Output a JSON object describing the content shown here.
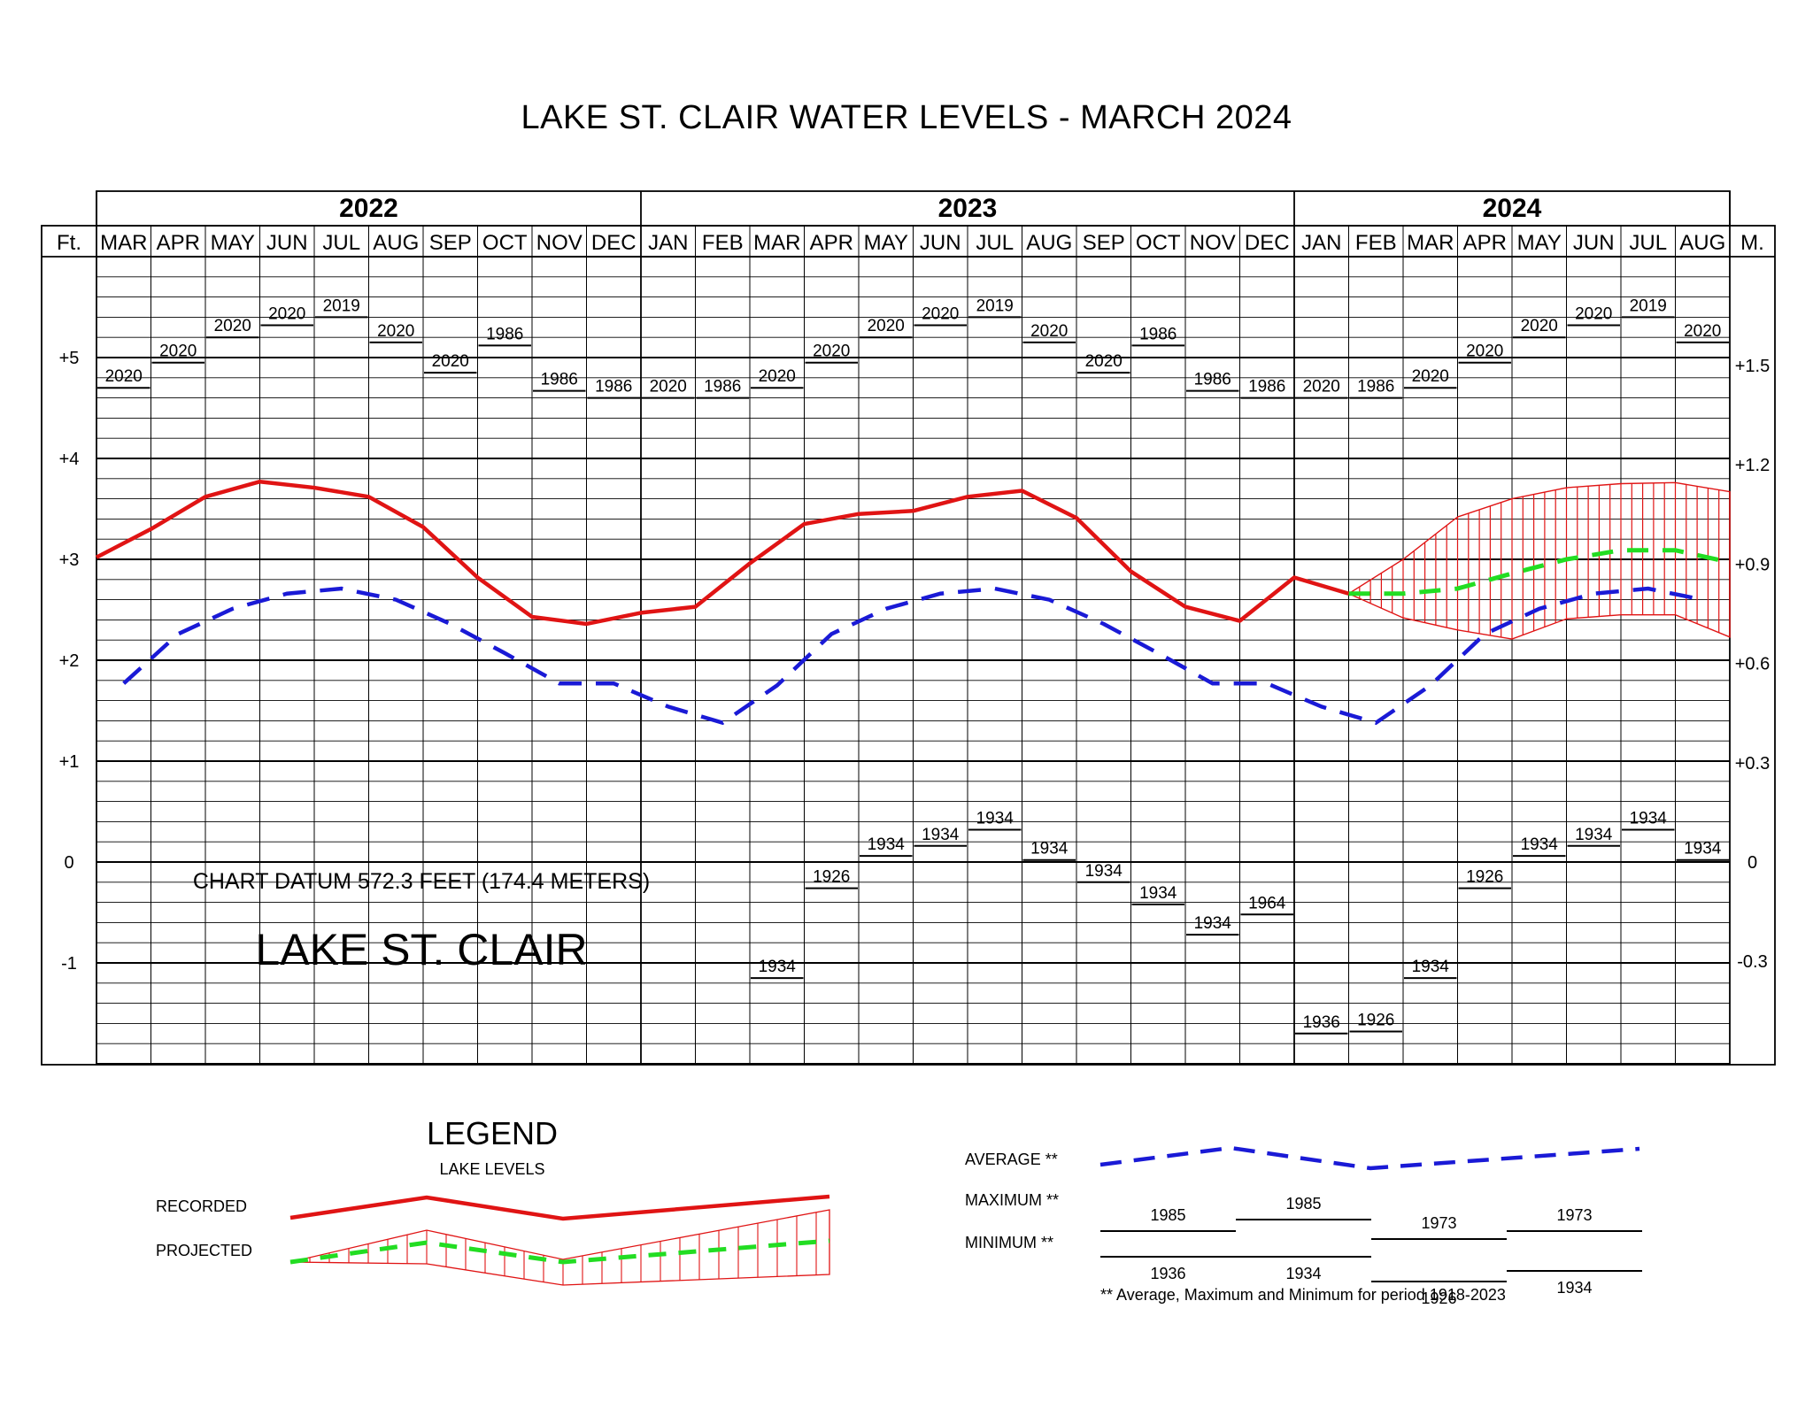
{
  "title": "LAKE ST. CLAIR WATER LEVELS - MARCH 2024",
  "chart_data": {
    "type": "line",
    "years": [
      {
        "label": "2022",
        "months": [
          "MAR",
          "APR",
          "MAY",
          "JUN",
          "JUL",
          "AUG",
          "SEP",
          "OCT",
          "NOV",
          "DEC"
        ]
      },
      {
        "label": "2023",
        "months": [
          "JAN",
          "FEB",
          "MAR",
          "APR",
          "MAY",
          "JUN",
          "JUL",
          "AUG",
          "SEP",
          "OCT",
          "NOV",
          "DEC"
        ]
      },
      {
        "label": "2024",
        "months": [
          "JAN",
          "FEB",
          "MAR",
          "APR",
          "MAY",
          "JUN",
          "JUL",
          "AUG"
        ]
      }
    ],
    "left_unit": "Ft.",
    "right_unit": "M.",
    "left_ticks": [
      {
        "v": 5,
        "label": "+5"
      },
      {
        "v": 4,
        "label": "+4"
      },
      {
        "v": 3,
        "label": "+3"
      },
      {
        "v": 2,
        "label": "+2"
      },
      {
        "v": 1,
        "label": "+1"
      },
      {
        "v": 0,
        "label": "0"
      },
      {
        "v": -1,
        "label": "-1"
      }
    ],
    "right_ticks": [
      {
        "v": 1.5,
        "label": "+1.5"
      },
      {
        "v": 1.2,
        "label": "+1.2"
      },
      {
        "v": 0.9,
        "label": "+0.9"
      },
      {
        "v": 0.6,
        "label": "+0.6"
      },
      {
        "v": 0.3,
        "label": "+0.3"
      },
      {
        "v": 0,
        "label": "0"
      },
      {
        "v": -0.3,
        "label": "-0.3"
      }
    ],
    "ylim_ft": [
      -2,
      6
    ],
    "grid": true,
    "recorded": [
      3.02,
      3.3,
      3.62,
      3.77,
      3.71,
      3.62,
      3.32,
      2.82,
      2.43,
      2.36,
      2.47,
      2.53,
      2.96,
      3.35,
      3.45,
      3.48,
      3.62,
      3.68,
      3.41,
      2.88,
      2.53,
      2.39,
      2.82,
      2.66
    ],
    "average": [
      1.77,
      2.26,
      2.51,
      2.66,
      2.71,
      2.6,
      2.36,
      2.07,
      1.77,
      1.77,
      1.54,
      1.38,
      1.75,
      2.26,
      2.51,
      2.66,
      2.71,
      2.6,
      2.36,
      2.07,
      1.77,
      1.77,
      1.54,
      1.38,
      1.75,
      2.26,
      2.51,
      2.66,
      2.71,
      2.6
    ],
    "maximum": [
      {
        "v": 4.7,
        "year": "2020"
      },
      {
        "v": 4.95,
        "year": "2020"
      },
      {
        "v": 5.2,
        "year": "2020"
      },
      {
        "v": 5.32,
        "year": "2020"
      },
      {
        "v": 5.4,
        "year": "2019"
      },
      {
        "v": 5.15,
        "year": "2020"
      },
      {
        "v": 4.85,
        "year": "2020"
      },
      {
        "v": 5.12,
        "year": "1986"
      },
      {
        "v": 4.67,
        "year": "1986"
      },
      {
        "v": 4.6,
        "year": "1986"
      },
      {
        "v": 4.6,
        "year": "2020"
      },
      {
        "v": 4.6,
        "year": "1986"
      },
      {
        "v": 4.7,
        "year": "2020"
      },
      {
        "v": 4.95,
        "year": "2020"
      },
      {
        "v": 5.2,
        "year": "2020"
      },
      {
        "v": 5.32,
        "year": "2020"
      },
      {
        "v": 5.4,
        "year": "2019"
      },
      {
        "v": 5.15,
        "year": "2020"
      },
      {
        "v": 4.85,
        "year": "2020"
      },
      {
        "v": 5.12,
        "year": "1986"
      },
      {
        "v": 4.67,
        "year": "1986"
      },
      {
        "v": 4.6,
        "year": "1986"
      },
      {
        "v": 4.6,
        "year": "2020"
      },
      {
        "v": 4.6,
        "year": "1986"
      },
      {
        "v": 4.7,
        "year": "2020"
      },
      {
        "v": 4.95,
        "year": "2020"
      },
      {
        "v": 5.2,
        "year": "2020"
      },
      {
        "v": 5.32,
        "year": "2020"
      },
      {
        "v": 5.4,
        "year": "2019"
      },
      {
        "v": 5.15,
        "year": "2020"
      }
    ],
    "minimum": [
      {
        "v": null,
        "year": ""
      },
      {
        "v": null,
        "year": ""
      },
      {
        "v": null,
        "year": ""
      },
      {
        "v": null,
        "year": ""
      },
      {
        "v": null,
        "year": ""
      },
      {
        "v": null,
        "year": ""
      },
      {
        "v": null,
        "year": ""
      },
      {
        "v": null,
        "year": ""
      },
      {
        "v": null,
        "year": ""
      },
      {
        "v": null,
        "year": ""
      },
      {
        "v": null,
        "year": ""
      },
      {
        "v": null,
        "year": ""
      },
      {
        "v": -1.15,
        "year": "1934"
      },
      {
        "v": -0.26,
        "year": "1926"
      },
      {
        "v": 0.06,
        "year": "1934"
      },
      {
        "v": 0.16,
        "year": "1934"
      },
      {
        "v": 0.32,
        "year": "1934"
      },
      {
        "v": 0.02,
        "year": "1934"
      },
      {
        "v": -0.2,
        "year": "1934"
      },
      {
        "v": -0.42,
        "year": "1934"
      },
      {
        "v": -0.72,
        "year": "1934"
      },
      {
        "v": -0.52,
        "year": "1964"
      },
      {
        "v": -1.7,
        "year": "1936"
      },
      {
        "v": -1.68,
        "year": "1926"
      },
      {
        "v": -1.15,
        "year": "1934"
      },
      {
        "v": -0.26,
        "year": "1926"
      },
      {
        "v": 0.06,
        "year": "1934"
      },
      {
        "v": 0.16,
        "year": "1934"
      },
      {
        "v": 0.32,
        "year": "1934"
      },
      {
        "v": 0.02,
        "year": "1934"
      }
    ],
    "projected": {
      "start_month": "FEB 2024",
      "mid": [
        2.66,
        2.66,
        2.71,
        2.86,
        3.0,
        3.09,
        3.09,
        2.97
      ],
      "upper": [
        2.66,
        3.0,
        3.42,
        3.6,
        3.71,
        3.75,
        3.76,
        3.67
      ],
      "lower": [
        2.66,
        2.42,
        2.3,
        2.21,
        2.41,
        2.45,
        2.45,
        2.23
      ]
    },
    "annotations": [
      "CHART DATUM 572.3 FEET (174.4 METERS)",
      "LAKE ST. CLAIR"
    ]
  },
  "legend": {
    "title": "LEGEND",
    "subtitle": "LAKE LEVELS",
    "recorded_label": "RECORDED",
    "projected_label": "PROJECTED",
    "average_label": "AVERAGE **",
    "maximum_label": "MAXIMUM **",
    "minimum_label": "MINIMUM **",
    "maximum_years": [
      "1985",
      "1985",
      "1973",
      "1973"
    ],
    "minimum_years": [
      "1936",
      "1934",
      "1926",
      "1934"
    ],
    "footnote": "** Average, Maximum and Minimum for period 1918-2023"
  },
  "colors": {
    "recorded": "#e01414",
    "average": "#1a1ad6",
    "projected": "#22dd22",
    "grid": "#000000"
  }
}
